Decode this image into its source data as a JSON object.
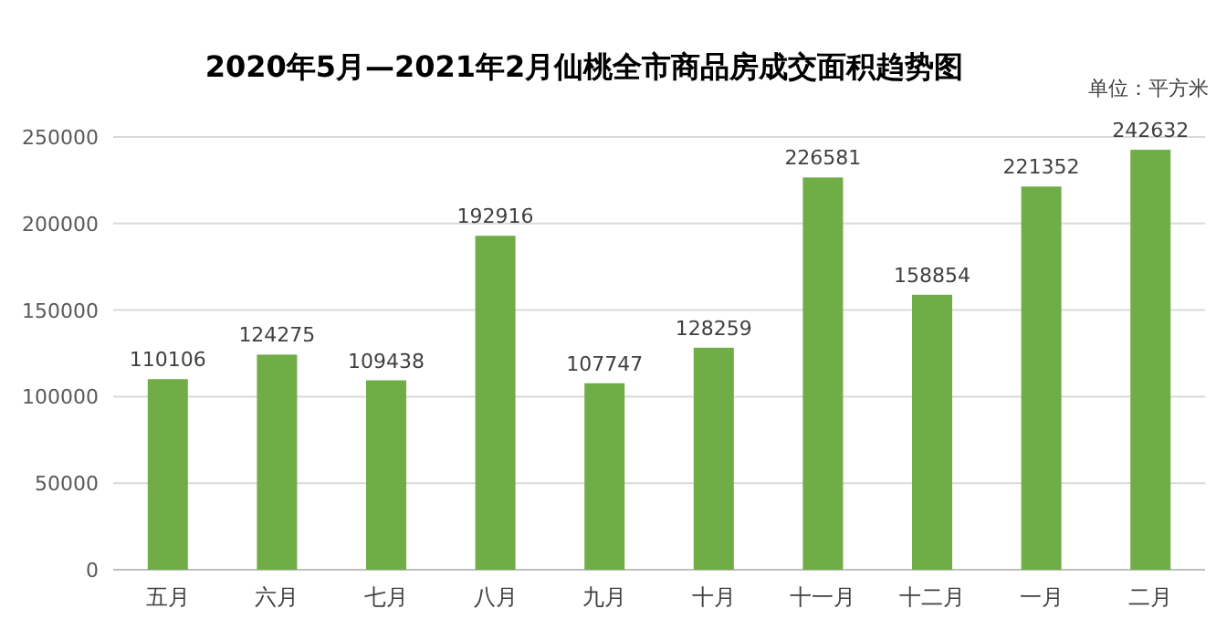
{
  "chart_data": {
    "type": "bar",
    "title": "2020年5月—2021年2月仙桃全市商品房成交面积趋势图",
    "ylabel": "单位：平方米",
    "categories": [
      "五月",
      "六月",
      "七月",
      "八月",
      "九月",
      "十月",
      "十一月",
      "十二月",
      "一月",
      "二月"
    ],
    "values": [
      110106,
      124275,
      109438,
      192916,
      107747,
      128259,
      226581,
      158854,
      221352,
      242632
    ],
    "color": "#70ad47",
    "ylim": [
      0,
      250000
    ],
    "yticks": [
      0,
      50000,
      100000,
      150000,
      200000,
      250000
    ],
    "grid": "y",
    "data_labels": true
  }
}
